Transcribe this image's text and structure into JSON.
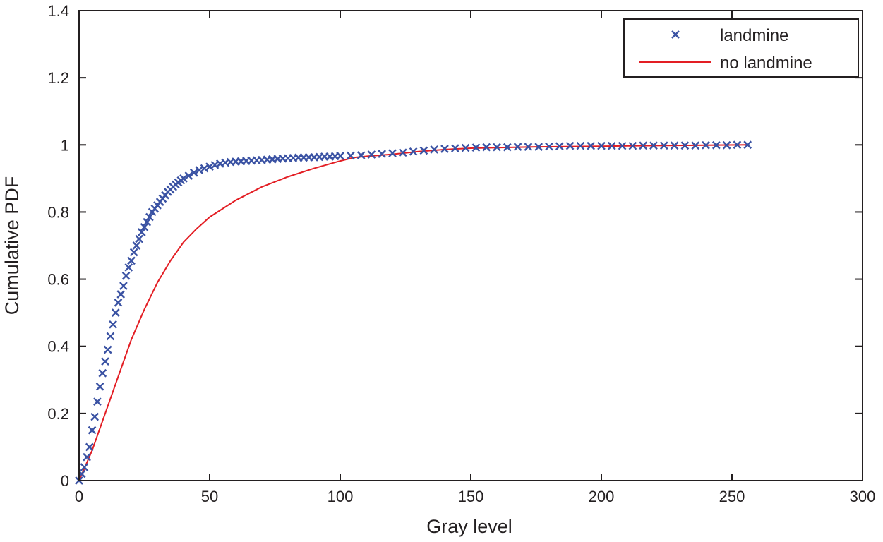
{
  "chart_data": {
    "type": "line",
    "title": "",
    "xlabel": "Gray level",
    "ylabel": "Cumulative PDF",
    "xlim": [
      0,
      300
    ],
    "ylim": [
      0,
      1.4
    ],
    "xticks": [
      "0",
      "50",
      "100",
      "150",
      "200",
      "250",
      "300"
    ],
    "yticks": [
      "0",
      "0.2",
      "0.4",
      "0.6",
      "0.8",
      "1",
      "1.2",
      "1.4"
    ],
    "grid": false,
    "legend_position": "top-right",
    "series": [
      {
        "name": "landmine",
        "marker": "x",
        "color": "#3a52a3",
        "x": [
          0,
          1,
          2,
          3,
          4,
          5,
          6,
          7,
          8,
          9,
          10,
          11,
          12,
          13,
          14,
          15,
          16,
          17,
          18,
          19,
          20,
          21,
          22,
          23,
          24,
          25,
          26,
          27,
          28,
          29,
          30,
          31,
          32,
          33,
          34,
          35,
          36,
          37,
          38,
          39,
          40,
          42,
          44,
          46,
          48,
          50,
          52,
          54,
          56,
          58,
          60,
          62,
          64,
          66,
          68,
          70,
          72,
          74,
          76,
          78,
          80,
          82,
          84,
          86,
          88,
          90,
          92,
          94,
          96,
          98,
          100,
          104,
          108,
          112,
          116,
          120,
          124,
          128,
          132,
          136,
          140,
          144,
          148,
          152,
          156,
          160,
          164,
          168,
          172,
          176,
          180,
          184,
          188,
          192,
          196,
          200,
          204,
          208,
          212,
          216,
          220,
          224,
          228,
          232,
          236,
          240,
          244,
          248,
          252,
          256
        ],
        "y": [
          0.0,
          0.02,
          0.04,
          0.07,
          0.1,
          0.15,
          0.19,
          0.235,
          0.28,
          0.32,
          0.355,
          0.39,
          0.43,
          0.465,
          0.5,
          0.53,
          0.555,
          0.58,
          0.61,
          0.635,
          0.655,
          0.68,
          0.7,
          0.72,
          0.74,
          0.755,
          0.77,
          0.785,
          0.8,
          0.81,
          0.82,
          0.83,
          0.84,
          0.85,
          0.86,
          0.867,
          0.875,
          0.882,
          0.888,
          0.894,
          0.9,
          0.908,
          0.917,
          0.925,
          0.93,
          0.935,
          0.94,
          0.944,
          0.947,
          0.949,
          0.95,
          0.951,
          0.952,
          0.953,
          0.954,
          0.955,
          0.956,
          0.957,
          0.958,
          0.959,
          0.96,
          0.961,
          0.962,
          0.962,
          0.963,
          0.963,
          0.964,
          0.965,
          0.965,
          0.966,
          0.967,
          0.968,
          0.969,
          0.971,
          0.973,
          0.975,
          0.977,
          0.98,
          0.983,
          0.986,
          0.988,
          0.99,
          0.991,
          0.992,
          0.993,
          0.993,
          0.993,
          0.994,
          0.994,
          0.994,
          0.995,
          0.996,
          0.997,
          0.997,
          0.997,
          0.997,
          0.997,
          0.997,
          0.997,
          0.998,
          0.998,
          0.998,
          0.998,
          0.998,
          0.998,
          0.999,
          0.999,
          0.999,
          1.0,
          1.0
        ]
      },
      {
        "name": "no landmine",
        "marker": "line",
        "color": "#e31e24",
        "x": [
          0,
          5,
          10,
          15,
          20,
          25,
          30,
          35,
          40,
          45,
          50,
          60,
          70,
          80,
          90,
          100,
          105,
          110,
          120,
          130,
          140,
          150,
          175,
          200,
          225,
          256
        ],
        "y": [
          0,
          0.09,
          0.2,
          0.31,
          0.42,
          0.51,
          0.59,
          0.655,
          0.71,
          0.75,
          0.785,
          0.835,
          0.875,
          0.905,
          0.93,
          0.952,
          0.962,
          0.966,
          0.972,
          0.98,
          0.986,
          0.99,
          0.994,
          0.996,
          0.998,
          1.0
        ]
      }
    ]
  }
}
